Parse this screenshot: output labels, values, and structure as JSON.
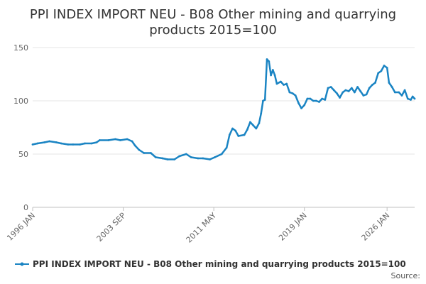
{
  "chart_data": {
    "type": "line",
    "title_lines": [
      "PPI INDEX IMPORT NEU - B08 Other mining and quarrying",
      "products 2015=100"
    ],
    "xlabel": "",
    "ylabel": "",
    "ylim": [
      0,
      150
    ],
    "y_ticks": [
      "0",
      "50",
      "100",
      "150"
    ],
    "x_ticks": [
      "1996 JAN",
      "2003 SEP",
      "2011 MAY",
      "2019 JAN",
      "2026 JAN"
    ],
    "grid": true,
    "legend_position": "bottom",
    "series": [
      {
        "name": "PPI INDEX IMPORT NEU - B08 Other mining and quarrying products 2015=100",
        "color": "#1a84c3",
        "points": [
          [
            "1996-01",
            59
          ],
          [
            "1996-06",
            60
          ],
          [
            "1997-01",
            61
          ],
          [
            "1997-06",
            62
          ],
          [
            "1998-01",
            61
          ],
          [
            "1998-06",
            60
          ],
          [
            "1999-01",
            59
          ],
          [
            "1999-06",
            59
          ],
          [
            "2000-01",
            59
          ],
          [
            "2000-06",
            60
          ],
          [
            "2001-01",
            60
          ],
          [
            "2001-06",
            61
          ],
          [
            "2001-09",
            63
          ],
          [
            "2002-06",
            63
          ],
          [
            "2003-01",
            64
          ],
          [
            "2003-06",
            63
          ],
          [
            "2004-01",
            64
          ],
          [
            "2004-06",
            62
          ],
          [
            "2004-09",
            58
          ],
          [
            "2005-01",
            54
          ],
          [
            "2005-06",
            51
          ],
          [
            "2006-01",
            51
          ],
          [
            "2006-06",
            47
          ],
          [
            "2007-01",
            46
          ],
          [
            "2007-06",
            45
          ],
          [
            "2008-01",
            45
          ],
          [
            "2008-06",
            48
          ],
          [
            "2009-01",
            50
          ],
          [
            "2009-06",
            47
          ],
          [
            "2010-01",
            46
          ],
          [
            "2010-06",
            46
          ],
          [
            "2011-01",
            45
          ],
          [
            "2011-06",
            47
          ],
          [
            "2012-01",
            50
          ],
          [
            "2012-06",
            56
          ],
          [
            "2012-09",
            68
          ],
          [
            "2012-12",
            74
          ],
          [
            "2013-03",
            72
          ],
          [
            "2013-06",
            67
          ],
          [
            "2013-12",
            68
          ],
          [
            "2014-03",
            73
          ],
          [
            "2014-06",
            80
          ],
          [
            "2014-09",
            77
          ],
          [
            "2014-12",
            74
          ],
          [
            "2015-03",
            79
          ],
          [
            "2015-05",
            88
          ],
          [
            "2015-07",
            100
          ],
          [
            "2015-09",
            101
          ],
          [
            "2015-11",
            139
          ],
          [
            "2016-01",
            137
          ],
          [
            "2016-03",
            124
          ],
          [
            "2016-05",
            129
          ],
          [
            "2016-07",
            124
          ],
          [
            "2016-09",
            116
          ],
          [
            "2017-01",
            118
          ],
          [
            "2017-04",
            115
          ],
          [
            "2017-07",
            116
          ],
          [
            "2017-10",
            108
          ],
          [
            "2018-01",
            107
          ],
          [
            "2018-04",
            105
          ],
          [
            "2018-07",
            98
          ],
          [
            "2018-10",
            93
          ],
          [
            "2019-01",
            96
          ],
          [
            "2019-04",
            102
          ],
          [
            "2019-07",
            102
          ],
          [
            "2019-10",
            100
          ],
          [
            "2020-01",
            100
          ],
          [
            "2020-04",
            99
          ],
          [
            "2020-07",
            102
          ],
          [
            "2020-10",
            101
          ],
          [
            "2021-01",
            112
          ],
          [
            "2021-04",
            113
          ],
          [
            "2021-07",
            110
          ],
          [
            "2021-10",
            107
          ],
          [
            "2022-01",
            103
          ],
          [
            "2022-04",
            108
          ],
          [
            "2022-07",
            110
          ],
          [
            "2022-10",
            109
          ],
          [
            "2023-01",
            112
          ],
          [
            "2023-04",
            108
          ],
          [
            "2023-07",
            113
          ],
          [
            "2023-10",
            109
          ],
          [
            "2024-01",
            105
          ],
          [
            "2024-04",
            106
          ],
          [
            "2024-07",
            112
          ],
          [
            "2024-10",
            115
          ],
          [
            "2025-01",
            117
          ],
          [
            "2025-04",
            126
          ],
          [
            "2025-07",
            128
          ],
          [
            "2025-10",
            133
          ],
          [
            "2026-01",
            131
          ],
          [
            "2026-03",
            117
          ],
          [
            "2026-06",
            113
          ],
          [
            "2026-09",
            108
          ],
          [
            "2027-01",
            108
          ],
          [
            "2027-04",
            105
          ],
          [
            "2027-07",
            110
          ],
          [
            "2027-10",
            102
          ],
          [
            "2028-01",
            101
          ],
          [
            "2028-03",
            104
          ],
          [
            "2028-05",
            102
          ]
        ]
      }
    ]
  },
  "footer": {
    "source_label": "Source:"
  }
}
